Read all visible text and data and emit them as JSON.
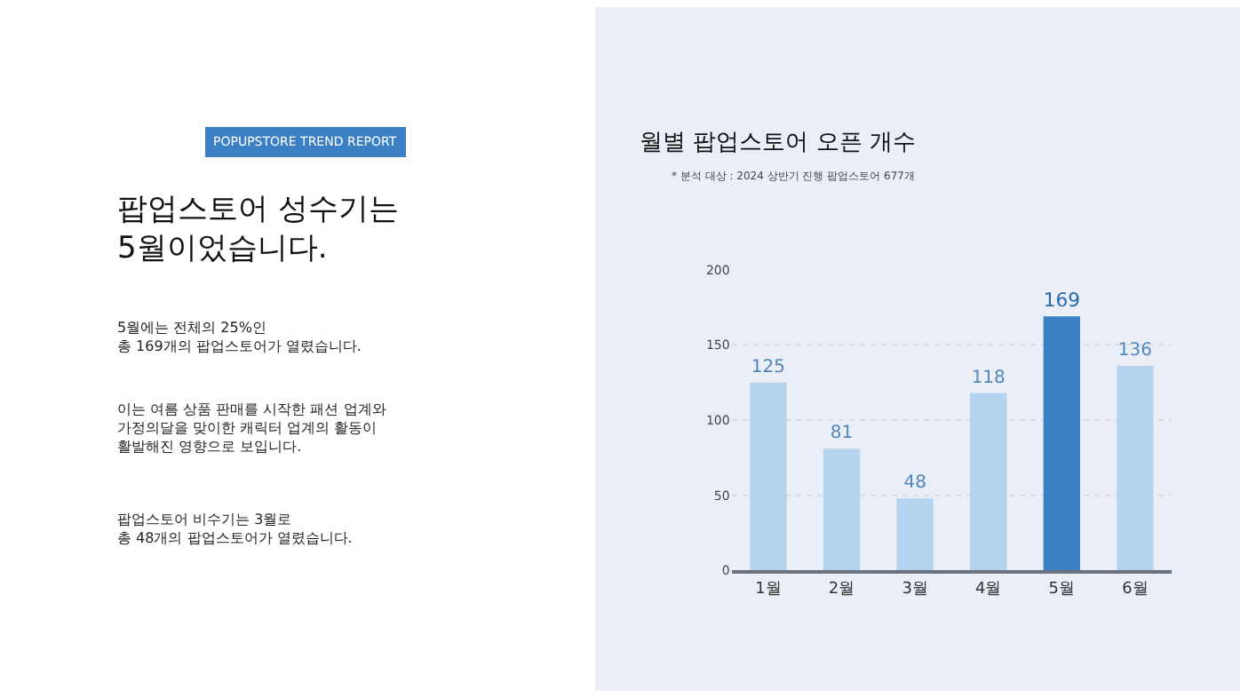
{
  "chart_data": {
    "type": "bar",
    "title": "월별 팝업스토어 오픈 개수",
    "subtitle": "* 분석 대상 : 2024 상반기 진행 팝업스토어 677개",
    "categories": [
      "1월",
      "2월",
      "3월",
      "4월",
      "5월",
      "6월"
    ],
    "values": [
      125,
      81,
      48,
      118,
      169,
      136
    ],
    "colors": [
      "#b5d3ee",
      "#b5d3ee",
      "#b5d3ee",
      "#b5d3ee",
      "#3b80c4",
      "#b5d3ee"
    ],
    "data_labels": true,
    "ylim": [
      0,
      200
    ],
    "yticks": [
      0,
      50,
      100,
      150,
      200
    ],
    "grid": "y",
    "annotations": [
      "POPUPSTORE TREND REPORT",
      "팝업스토어 성수기는\n5월이었습니다.",
      "5월에는 전체의 25%인\n총 169개의 팝업스토어가 열렸습니다.",
      "이는 여름 상품 판매를 시작한 패션 업계와\n가정의달을 맞이한 캐릭터 업계의 활동이\n활발해진 영향으로 보입니다.",
      "팝업스토어 비수기는 3월로\n총 48개의 팝업스토어가 열렸습니다."
    ]
  }
}
